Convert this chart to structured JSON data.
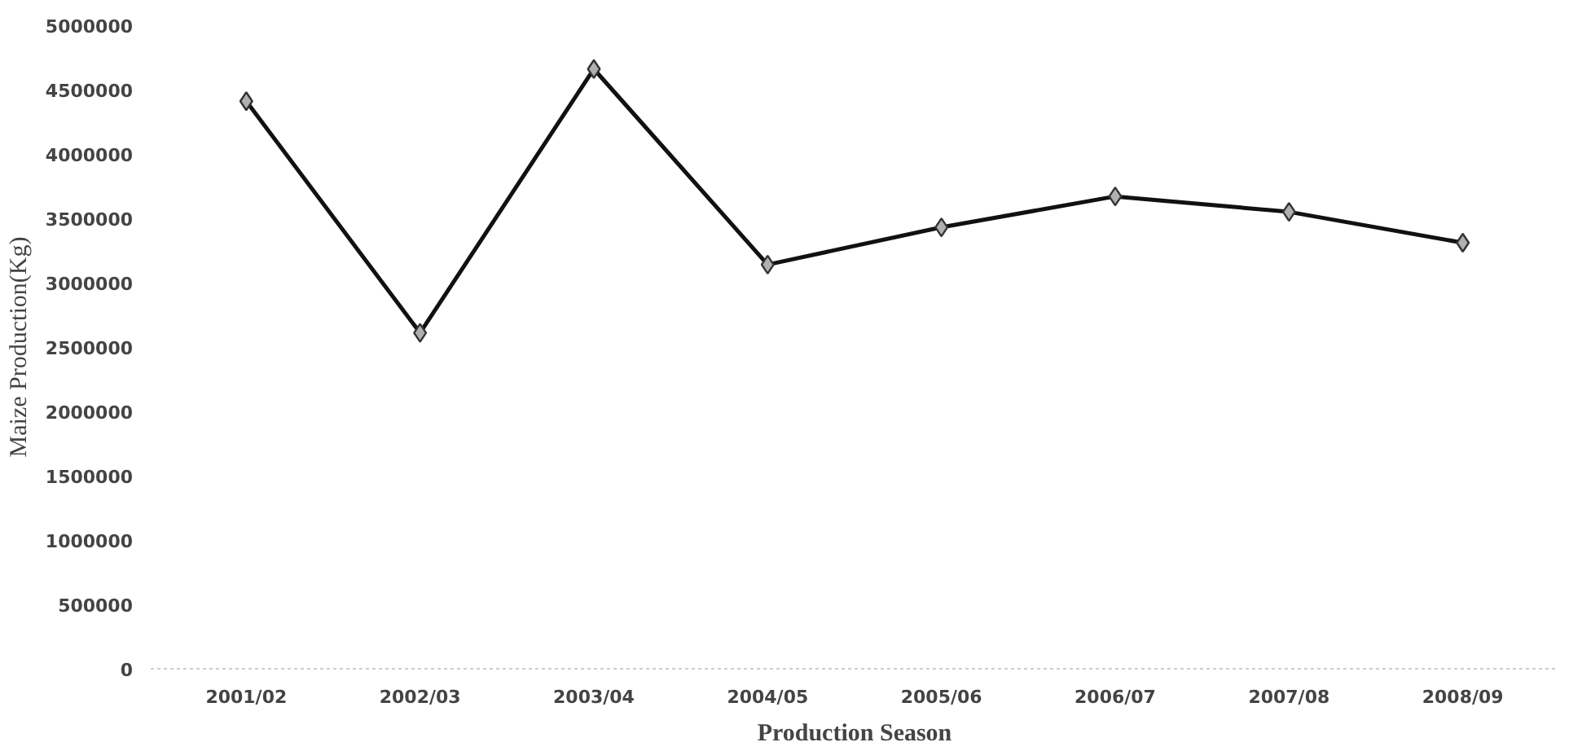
{
  "chart_data": {
    "type": "line",
    "xlabel": "Production Season",
    "ylabel": "Maize Production(Kg)",
    "categories": [
      "2001/02",
      "2002/03",
      "2003/04",
      "2004/05",
      "2005/06",
      "2006/07",
      "2007/08",
      "2008/09"
    ],
    "series": [
      {
        "color": "#111111",
        "values": [
          4410000,
          2610000,
          4660000,
          3140000,
          3430000,
          3670000,
          3550000,
          3310000
        ]
      }
    ],
    "ylim": [
      0,
      5000000
    ],
    "yticks": [
      0,
      500000,
      1000000,
      1500000,
      2000000,
      2500000,
      3000000,
      3500000,
      4000000,
      4500000,
      5000000
    ],
    "marker": "diamond",
    "line_style": "solid"
  }
}
